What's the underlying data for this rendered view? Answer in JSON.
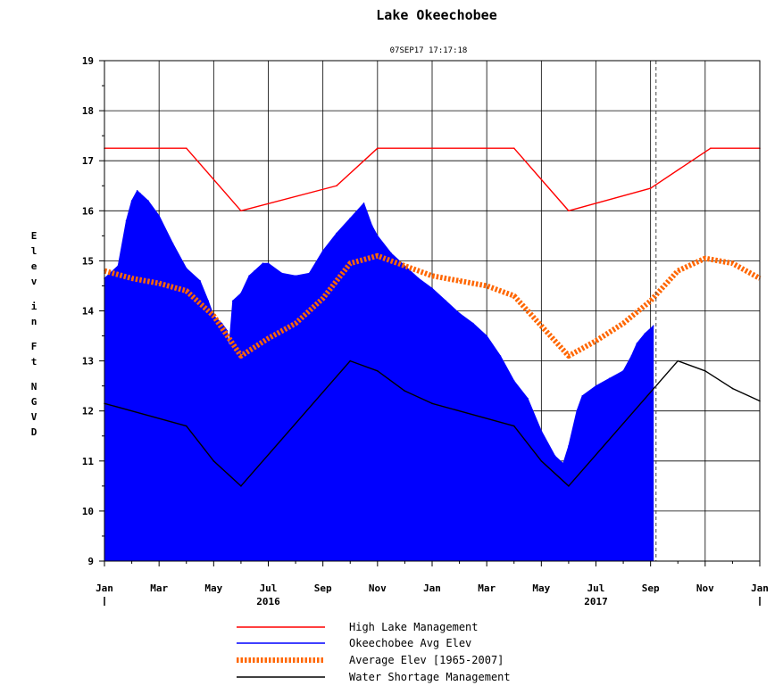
{
  "chart_data": {
    "type": "area",
    "title": "Lake Okeechobee",
    "subtitle": "07SEP17  17:17:18",
    "ylabel": "Elev in Ft NGVD",
    "ylim": [
      9,
      19
    ],
    "yticks": [
      "9",
      "10",
      "11",
      "12",
      "13",
      "14",
      "15",
      "16",
      "17",
      "18",
      "19"
    ],
    "xlim": [
      0,
      24
    ],
    "xticks": [
      "Jan",
      "Mar",
      "May",
      "Jul",
      "Sep",
      "Nov",
      "Jan",
      "Mar",
      "May",
      "Jul",
      "Sep",
      "Nov",
      "Jan"
    ],
    "year_labels": [
      "2016",
      "2017"
    ],
    "current_date_marker": 20.2,
    "grid": true,
    "legend_position": "bottom",
    "series": [
      {
        "name": "High Lake Management",
        "style": "line",
        "color": "#ff0000",
        "x": [
          0,
          3,
          5,
          8.5,
          10,
          15,
          17,
          20,
          22.2,
          24
        ],
        "y": [
          17.25,
          17.25,
          16.0,
          16.5,
          17.25,
          17.25,
          16.0,
          16.45,
          17.25,
          17.25
        ]
      },
      {
        "name": "Okeechobee Avg Elev",
        "style": "area",
        "color": "#0000ff",
        "x": [
          0,
          0.5,
          0.8,
          1.0,
          1.2,
          1.3,
          1.6,
          2.0,
          2.5,
          3.0,
          3.5,
          3.8,
          4.0,
          4.3,
          4.5,
          4.55,
          4.7,
          5.0,
          5.3,
          5.5,
          5.8,
          6.0,
          6.5,
          7.0,
          7.5,
          8.0,
          8.5,
          9.0,
          9.5,
          9.8,
          10.0,
          10.5,
          11.0,
          11.5,
          12.0,
          12.5,
          13.0,
          13.5,
          14.0,
          14.5,
          15.0,
          15.5,
          16.0,
          16.5,
          16.8,
          17.0,
          17.3,
          17.5,
          18.0,
          18.5,
          19.0,
          19.3,
          19.5,
          19.8,
          20.1
        ],
        "y": [
          14.65,
          14.9,
          15.8,
          16.2,
          16.4,
          16.35,
          16.2,
          15.9,
          15.35,
          14.85,
          14.6,
          14.2,
          13.9,
          13.75,
          13.6,
          13.2,
          14.2,
          14.35,
          14.7,
          14.8,
          14.95,
          14.95,
          14.75,
          14.7,
          14.75,
          15.2,
          15.55,
          15.85,
          16.15,
          15.7,
          15.5,
          15.15,
          14.9,
          14.65,
          14.45,
          14.2,
          13.95,
          13.75,
          13.5,
          13.1,
          12.6,
          12.25,
          11.6,
          11.1,
          10.95,
          11.3,
          12.0,
          12.3,
          12.5,
          12.65,
          12.8,
          13.1,
          13.35,
          13.55,
          13.7
        ]
      },
      {
        "name": "Average Elev [1965-2007]",
        "style": "dashed",
        "color": "#ff6600",
        "x": [
          0,
          1,
          2,
          3,
          4,
          5,
          6,
          7,
          8,
          9,
          10,
          11,
          12,
          13,
          14,
          15,
          16,
          17,
          18,
          19,
          20,
          21,
          22,
          23,
          24
        ],
        "y": [
          14.8,
          14.65,
          14.55,
          14.4,
          13.9,
          13.1,
          13.45,
          13.75,
          14.25,
          14.95,
          15.1,
          14.9,
          14.7,
          14.6,
          14.5,
          14.3,
          13.7,
          13.1,
          13.4,
          13.75,
          14.2,
          14.8,
          15.05,
          14.95,
          14.65
        ]
      },
      {
        "name": "Water Shortage Management",
        "style": "line",
        "color": "#000000",
        "x": [
          0,
          3,
          4,
          5,
          9,
          10,
          11,
          12,
          15,
          16,
          17,
          21,
          22,
          23,
          24
        ],
        "y": [
          12.15,
          11.7,
          11.0,
          10.5,
          13.0,
          12.8,
          12.4,
          12.15,
          11.7,
          11.0,
          10.5,
          13.0,
          12.8,
          12.45,
          12.2
        ]
      }
    ]
  }
}
